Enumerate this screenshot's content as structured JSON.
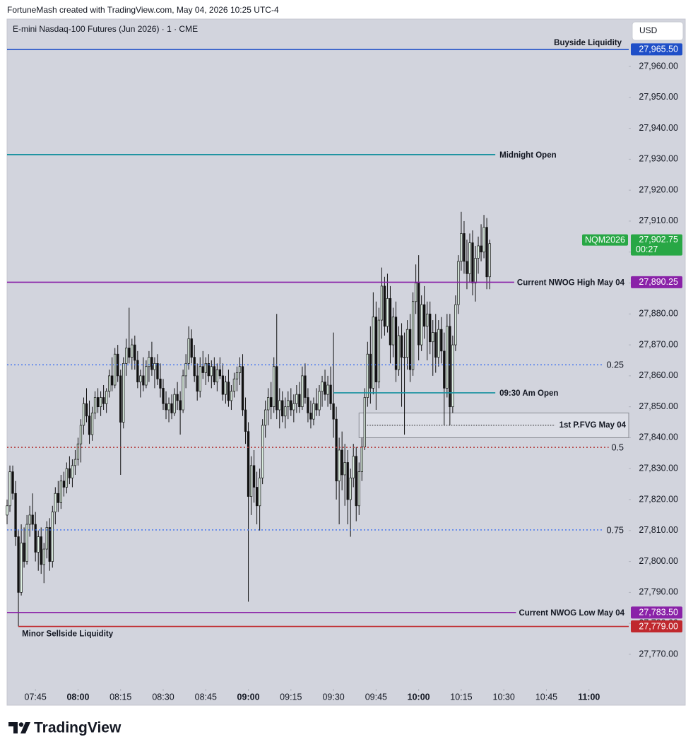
{
  "header": "FortuneMash created with TradingView.com, May 04, 2026 10:25 UTC-4",
  "footer": "TradingView",
  "chart_data": {
    "type": "candlestick",
    "title": "E-mini Nasdaq-100 Futures (Jun 2026) · 1 · CME",
    "currency": "USD",
    "up_color": "#dff2e3",
    "down_color": "#111111",
    "x": [
      "07:35",
      "07:36",
      "07:37",
      "07:38",
      "07:39",
      "07:40",
      "07:41",
      "07:42",
      "07:43",
      "07:44",
      "07:45",
      "07:46",
      "07:47",
      "07:48",
      "07:49",
      "07:50",
      "07:51",
      "07:52",
      "07:53",
      "07:54",
      "07:55",
      "07:56",
      "07:57",
      "07:58",
      "07:59",
      "08:00",
      "08:01",
      "08:02",
      "08:03",
      "08:04",
      "08:05",
      "08:06",
      "08:07",
      "08:08",
      "08:09",
      "08:10",
      "08:11",
      "08:12",
      "08:13",
      "08:14",
      "08:15",
      "08:16",
      "08:17",
      "08:18",
      "08:19",
      "08:20",
      "08:21",
      "08:22",
      "08:23",
      "08:24",
      "08:25",
      "08:26",
      "08:27",
      "08:28",
      "08:29",
      "08:30",
      "08:31",
      "08:32",
      "08:33",
      "08:34",
      "08:35",
      "08:36",
      "08:37",
      "08:38",
      "08:39",
      "08:40",
      "08:41",
      "08:42",
      "08:43",
      "08:44",
      "08:45",
      "08:46",
      "08:47",
      "08:48",
      "08:49",
      "08:50",
      "08:51",
      "08:52",
      "08:53",
      "08:54",
      "08:55",
      "08:56",
      "08:57",
      "08:58",
      "08:59",
      "09:00",
      "09:01",
      "09:02",
      "09:03",
      "09:04",
      "09:05",
      "09:06",
      "09:07",
      "09:08",
      "09:09",
      "09:10",
      "09:11",
      "09:12",
      "09:13",
      "09:14",
      "09:15",
      "09:16",
      "09:17",
      "09:18",
      "09:19",
      "09:20",
      "09:21",
      "09:22",
      "09:23",
      "09:24",
      "09:25",
      "09:26",
      "09:27",
      "09:28",
      "09:29",
      "09:30",
      "09:31",
      "09:32",
      "09:33",
      "09:34",
      "09:35",
      "09:36",
      "09:37",
      "09:38",
      "09:39",
      "09:40",
      "09:41",
      "09:42",
      "09:43",
      "09:44",
      "09:45",
      "09:46",
      "09:47",
      "09:48",
      "09:49",
      "09:50",
      "09:51",
      "09:52",
      "09:53",
      "09:54",
      "09:55",
      "09:56",
      "09:57",
      "09:58",
      "09:59",
      "10:00",
      "10:01",
      "10:02",
      "10:03",
      "10:04",
      "10:05",
      "10:06",
      "10:07",
      "10:08",
      "10:09",
      "10:10",
      "10:11",
      "10:12",
      "10:13",
      "10:14",
      "10:15",
      "10:16",
      "10:17",
      "10:18",
      "10:19",
      "10:20",
      "10:21",
      "10:22",
      "10:23",
      "10:24",
      "10:25"
    ],
    "open": [
      27815,
      27818,
      27829,
      27822,
      27808,
      27790,
      27806,
      27800,
      27812,
      27815,
      27812,
      27803,
      27808,
      27799,
      27804,
      27811,
      27800,
      27816,
      27822,
      27819,
      27826,
      27824,
      27830,
      27827,
      27831,
      27833,
      27838,
      27844,
      27851,
      27847,
      27841,
      27848,
      27853,
      27850,
      27853,
      27851,
      27855,
      27860,
      27857,
      27867,
      27860,
      27845,
      27864,
      27869,
      27866,
      27870,
      27865,
      27858,
      27860,
      27857,
      27863,
      27866,
      27862,
      27864,
      27859,
      27856,
      27851,
      27849,
      27851,
      27848,
      27854,
      27852,
      27849,
      27860,
      27864,
      27872,
      27866,
      27860,
      27855,
      27863,
      27861,
      27864,
      27860,
      27863,
      27858,
      27862,
      27860,
      27854,
      27858,
      27852,
      27855,
      27859,
      27861,
      27863,
      27849,
      27842,
      27821,
      27831,
      27824,
      27818,
      27827,
      27844,
      27849,
      27853,
      27850,
      27863,
      27849,
      27852,
      27847,
      27850,
      27852,
      27849,
      27851,
      27854,
      27850,
      27860,
      27853,
      27848,
      27846,
      27851,
      27849,
      27855,
      27858,
      27854,
      27857,
      27851,
      27846,
      27826,
      27836,
      27828,
      27832,
      27820,
      27827,
      27834,
      27818,
      27829,
      27837,
      27853,
      27867,
      27856,
      27879,
      27858,
      27878,
      27889,
      27876,
      27885,
      27870,
      27879,
      27862,
      27873,
      27866,
      27866,
      27875,
      27862,
      27884,
      27890,
      27870,
      27883,
      27876,
      27880,
      27871,
      27874,
      27866,
      27875,
      27868,
      27856,
      27876,
      27850,
      27870,
      27883,
      27897,
      27906,
      27897,
      27893,
      27903,
      27890,
      27898,
      27902,
      27900,
      27908,
      27892
    ],
    "high": [
      27820,
      27831,
      27831,
      27826,
      27810,
      27812,
      27811,
      27815,
      27818,
      27822,
      27816,
      27810,
      27811,
      27806,
      27813,
      27814,
      27818,
      27824,
      27826,
      27828,
      27829,
      27832,
      27834,
      27833,
      27836,
      27840,
      27846,
      27853,
      27856,
      27852,
      27850,
      27855,
      27856,
      27855,
      27857,
      27856,
      27862,
      27866,
      27869,
      27870,
      27862,
      27866,
      27872,
      27882,
      27872,
      27873,
      27868,
      27862,
      27866,
      27865,
      27868,
      27871,
      27866,
      27867,
      27864,
      27859,
      27855,
      27853,
      27854,
      27856,
      27858,
      27855,
      27862,
      27867,
      27876,
      27875,
      27870,
      27864,
      27866,
      27868,
      27866,
      27867,
      27865,
      27866,
      27864,
      27866,
      27864,
      27860,
      27862,
      27857,
      27861,
      27863,
      27866,
      27867,
      27853,
      27845,
      27834,
      27836,
      27829,
      27830,
      27846,
      27852,
      27856,
      27858,
      27866,
      27880,
      27856,
      27855,
      27853,
      27855,
      27856,
      27854,
      27857,
      27858,
      27863,
      27864,
      27856,
      27852,
      27853,
      27856,
      27857,
      27860,
      27862,
      27860,
      27863,
      27874,
      27850,
      27840,
      27842,
      27838,
      27836,
      27830,
      27838,
      27837,
      27832,
      27840,
      27856,
      27871,
      27876,
      27887,
      27884,
      27882,
      27895,
      27892,
      27893,
      27889,
      27882,
      27884,
      27876,
      27877,
      27874,
      27878,
      27880,
      27887,
      27896,
      27899,
      27886,
      27889,
      27884,
      27884,
      27878,
      27880,
      27878,
      27879,
      27874,
      27880,
      27880,
      27873,
      27886,
      27899,
      27913,
      27910,
      27904,
      27906,
      27907,
      27902,
      27905,
      27909,
      27912,
      27911,
      27904
    ],
    "low": [
      27812,
      27816,
      27820,
      27805,
      27779,
      27789,
      27798,
      27799,
      27808,
      27810,
      27800,
      27797,
      27796,
      27793,
      27801,
      27797,
      27798,
      27812,
      27816,
      27817,
      27821,
      27822,
      27825,
      27824,
      27828,
      27831,
      27832,
      27841,
      27845,
      27838,
      27839,
      27846,
      27848,
      27847,
      27849,
      27848,
      27853,
      27855,
      27856,
      27858,
      27828,
      27843,
      27860,
      27864,
      27862,
      27862,
      27856,
      27853,
      27855,
      27856,
      27858,
      27860,
      27856,
      27857,
      27853,
      27849,
      27846,
      27845,
      27846,
      27847,
      27849,
      27841,
      27848,
      27856,
      27862,
      27864,
      27858,
      27852,
      27853,
      27859,
      27857,
      27858,
      27856,
      27857,
      27855,
      27859,
      27852,
      27851,
      27850,
      27849,
      27853,
      27855,
      27857,
      27847,
      27838,
      27787,
      27815,
      27819,
      27812,
      27810,
      27825,
      27840,
      27844,
      27846,
      27848,
      27846,
      27843,
      27845,
      27843,
      27846,
      27847,
      27845,
      27848,
      27848,
      27849,
      27851,
      27845,
      27843,
      27844,
      27847,
      27847,
      27850,
      27852,
      27850,
      27849,
      27840,
      27820,
      27812,
      27823,
      27818,
      27812,
      27808,
      27824,
      27813,
      27815,
      27826,
      27836,
      27850,
      27851,
      27854,
      27849,
      27856,
      27872,
      27873,
      27874,
      27864,
      27866,
      27858,
      27860,
      27850,
      27841,
      27862,
      27858,
      27860,
      27880,
      27865,
      27868,
      27872,
      27865,
      27867,
      27860,
      27861,
      27863,
      27864,
      27844,
      27853,
      27844,
      27848,
      27868,
      27880,
      27894,
      27893,
      27888,
      27890,
      27886,
      27884,
      27893,
      27897,
      27898,
      27888,
      27888
    ],
    "close": [
      27818,
      27829,
      27822,
      27808,
      27790,
      27806,
      27800,
      27812,
      27815,
      27812,
      27803,
      27808,
      27799,
      27804,
      27811,
      27800,
      27816,
      27822,
      27819,
      27826,
      27824,
      27830,
      27827,
      27831,
      27833,
      27838,
      27844,
      27851,
      27847,
      27841,
      27848,
      27853,
      27850,
      27853,
      27851,
      27855,
      27860,
      27857,
      27867,
      27860,
      27845,
      27864,
      27869,
      27866,
      27870,
      27865,
      27858,
      27860,
      27857,
      27863,
      27866,
      27862,
      27864,
      27859,
      27856,
      27851,
      27849,
      27851,
      27848,
      27854,
      27852,
      27849,
      27860,
      27864,
      27872,
      27866,
      27860,
      27855,
      27863,
      27861,
      27864,
      27860,
      27863,
      27858,
      27862,
      27860,
      27854,
      27858,
      27852,
      27855,
      27859,
      27861,
      27863,
      27849,
      27842,
      27821,
      27831,
      27824,
      27818,
      27827,
      27844,
      27849,
      27853,
      27850,
      27863,
      27849,
      27852,
      27847,
      27850,
      27852,
      27849,
      27851,
      27854,
      27850,
      27860,
      27853,
      27848,
      27846,
      27851,
      27849,
      27855,
      27858,
      27854,
      27857,
      27851,
      27846,
      27826,
      27836,
      27828,
      27832,
      27820,
      27827,
      27834,
      27818,
      27829,
      27837,
      27853,
      27867,
      27856,
      27879,
      27858,
      27878,
      27889,
      27876,
      27885,
      27870,
      27879,
      27862,
      27873,
      27866,
      27866,
      27875,
      27862,
      27884,
      27890,
      27870,
      27883,
      27876,
      27880,
      27871,
      27874,
      27866,
      27875,
      27868,
      27856,
      27876,
      27850,
      27870,
      27883,
      27897,
      27906,
      27897,
      27893,
      27903,
      27890,
      27898,
      27902,
      27900,
      27908,
      27892,
      27902.75
    ],
    "xlim": [
      "07:35",
      "11:14"
    ],
    "xticks": [
      "07:45",
      "08:00",
      "08:15",
      "08:30",
      "08:45",
      "09:00",
      "09:15",
      "09:30",
      "09:45",
      "10:00",
      "10:15",
      "10:30",
      "10:45",
      "11:00"
    ],
    "ylim": [
      27758.8,
      27975.3
    ],
    "yticks": [
      {
        "value": 27770,
        "label": "27,770.00"
      },
      {
        "value": 27780,
        "label": "27,780.00"
      },
      {
        "value": 27790,
        "label": "27,790.00"
      },
      {
        "value": 27800,
        "label": "27,800.00"
      },
      {
        "value": 27810,
        "label": "27,810.00"
      },
      {
        "value": 27820,
        "label": "27,820.00"
      },
      {
        "value": 27830,
        "label": "27,830.00"
      },
      {
        "value": 27840,
        "label": "27,840.00"
      },
      {
        "value": 27850,
        "label": "27,850.00"
      },
      {
        "value": 27860,
        "label": "27,860.00"
      },
      {
        "value": 27870,
        "label": "27,870.00"
      },
      {
        "value": 27880,
        "label": "27,880.00"
      },
      {
        "value": 27890,
        "label": "27,890.00"
      },
      {
        "value": 27900,
        "label": "27,900.00"
      },
      {
        "value": 27910,
        "label": "27,910.00"
      },
      {
        "value": 27920,
        "label": "27,920.00"
      },
      {
        "value": 27930,
        "label": "27,930.00"
      },
      {
        "value": 27940,
        "label": "27,940.00"
      },
      {
        "value": 27950,
        "label": "27,950.00"
      },
      {
        "value": 27960,
        "label": "27,960.00"
      }
    ],
    "levels": [
      {
        "label": "Buyside Liquidity",
        "value": 27965.5,
        "value_label": "27,965.50",
        "color": "#1f4fc8",
        "line_style": "solid",
        "label_placement": "above-right"
      },
      {
        "label": "Midnight Open",
        "value": 27931.5,
        "color": "#17909f",
        "line_style": "solid",
        "end": "10:27",
        "label_color": "#111111",
        "label_placement": "after-end"
      },
      {
        "label": "Current NWOG High May 04",
        "value": 27890.25,
        "value_label": "27,890.25",
        "color": "#8a22a8",
        "line_style": "solid",
        "label_placement": "right"
      },
      {
        "label": "0.25",
        "value": 27863.5625,
        "color": "#3c6ff0",
        "line_style": "dotted",
        "label_placement": "right"
      },
      {
        "label": "09:30 Am Open",
        "value": 27854.5,
        "color": "#17909f",
        "line_style": "solid",
        "start": "09:30",
        "end": "10:27",
        "label_color": "#111111",
        "label_placement": "after-end"
      },
      {
        "label": "0.5",
        "value": 27836.875,
        "color": "#b23434",
        "line_style": "dotted",
        "label_placement": "right"
      },
      {
        "label": "0.75",
        "value": 27810.1875,
        "color": "#3c6ff0",
        "line_style": "dotted",
        "label_placement": "right"
      },
      {
        "label": "Current NWOG Low May 04",
        "value": 27783.5,
        "value_label": "27,783.50",
        "color": "#8a22a8",
        "line_style": "solid",
        "label_placement": "right"
      },
      {
        "label": "Minor Sellside Liquidity",
        "value": 27779,
        "value_label": "27,779.00",
        "color": "#c0282d",
        "line_style": "solid",
        "start": "07:39",
        "label_placement": "below-left"
      }
    ],
    "fvg": {
      "label": "1st P.FVG May 04",
      "top": 27848,
      "bottom": 27840,
      "mid": 27844,
      "start": "09:39"
    },
    "last_price": {
      "symbol": "NQM2026",
      "value": 27902.75,
      "value_label": "27,902.75",
      "countdown": "00:27",
      "color": "#28a745"
    }
  }
}
